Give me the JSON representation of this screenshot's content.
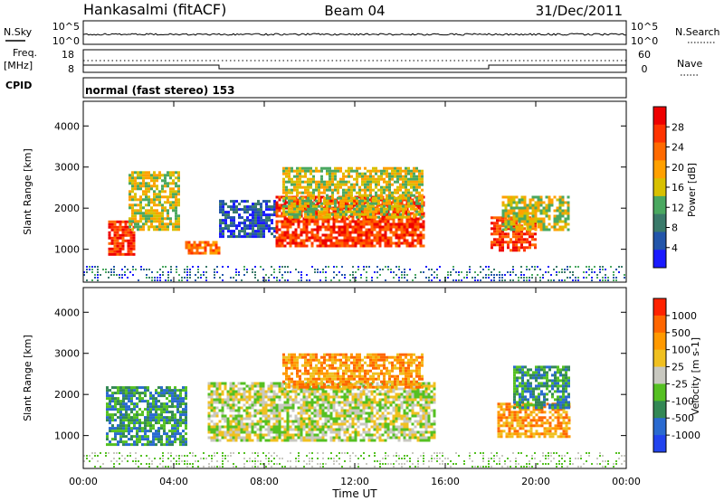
{
  "header": {
    "station": "Hankasalmi (fitACF)",
    "beam": "Beam 04",
    "date": "31/Dec/2011"
  },
  "strips": {
    "nsky_label": "N.Sky",
    "nsearch_label": "N.Search",
    "nsky_ticks": [
      "10^5",
      "10^0"
    ],
    "nsearch_ticks": [
      "10^5",
      "10^0"
    ],
    "freq_label": "Freq.",
    "freq_unit": "[MHz]",
    "freq_ticks": [
      "18",
      "8"
    ],
    "nave_label": "Nave",
    "nave_ticks": [
      "60",
      "0"
    ],
    "cpid_label": "CPID",
    "cpid_text": "normal (fast stereo) 153"
  },
  "colors": {
    "power_scale": [
      "#1a1aff",
      "#2255aa",
      "#3a7a6a",
      "#4aa860",
      "#d8c000",
      "#ffa000",
      "#ff6a00",
      "#ff3300",
      "#ee0000"
    ],
    "velocity_scale": [
      "#2244ee",
      "#2a6ad0",
      "#338855",
      "#55c022",
      "#c8c8c0",
      "#f0c020",
      "#ff9900",
      "#ff6600",
      "#ff2200"
    ],
    "groundscatter": "#c8c8c0"
  },
  "chart_data": [
    {
      "type": "heatmap",
      "panel": "power",
      "ylabel": "Slant Range [km]",
      "y_ticks": [
        1000,
        2000,
        3000,
        4000
      ],
      "ylim": [
        200,
        4600
      ],
      "x_ticks": [
        "00:00",
        "04:00",
        "08:00",
        "12:00",
        "16:00",
        "20:00",
        "00:00"
      ],
      "xlim_hours": [
        0,
        24
      ],
      "colorbar_label": "Power [dB]",
      "colorbar_ticks": [
        "28",
        "24",
        "20",
        "16",
        "12",
        "8",
        "4"
      ],
      "regions": [
        {
          "t": [
            1.1,
            2.3
          ],
          "r": [
            850,
            1700
          ],
          "level": 7
        },
        {
          "t": [
            2.0,
            4.2
          ],
          "r": [
            1500,
            2900
          ],
          "level": 4
        },
        {
          "t": [
            4.5,
            6.0
          ],
          "r": [
            900,
            1200
          ],
          "level": 6
        },
        {
          "t": [
            6.0,
            8.5
          ],
          "r": [
            1300,
            2200
          ],
          "level": 1
        },
        {
          "t": [
            8.5,
            15.0
          ],
          "r": [
            1100,
            2300
          ],
          "level": 7
        },
        {
          "t": [
            8.8,
            15.0
          ],
          "r": [
            1800,
            3000
          ],
          "level": 4
        },
        {
          "t": [
            18.0,
            20.0
          ],
          "r": [
            1000,
            1800
          ],
          "level": 7
        },
        {
          "t": [
            18.5,
            21.5
          ],
          "r": [
            1500,
            2300
          ],
          "level": 4
        }
      ]
    },
    {
      "type": "heatmap",
      "panel": "velocity",
      "ylabel": "Slant Range [km]",
      "y_ticks": [
        1000,
        2000,
        3000,
        4000
      ],
      "ylim": [
        200,
        4600
      ],
      "x_ticks": [
        "00:00",
        "04:00",
        "08:00",
        "12:00",
        "16:00",
        "20:00",
        "00:00"
      ],
      "xlim_hours": [
        0,
        24
      ],
      "xlabel": "Time UT",
      "colorbar_label": "Velocity [m s-1]",
      "colorbar_ticks": [
        "1000",
        "500",
        "100",
        "25",
        "-25",
        "-100",
        "-500",
        "-1000"
      ],
      "regions": [
        {
          "t": [
            1.0,
            4.5
          ],
          "r": [
            800,
            2200
          ],
          "level": 2
        },
        {
          "t": [
            5.5,
            15.5
          ],
          "r": [
            900,
            2300
          ],
          "level": 4
        },
        {
          "t": [
            8.8,
            15.0
          ],
          "r": [
            2200,
            3000
          ],
          "level": 6
        },
        {
          "t": [
            18.3,
            21.5
          ],
          "r": [
            1000,
            1800
          ],
          "level": 6
        },
        {
          "t": [
            19.0,
            21.5
          ],
          "r": [
            1700,
            2700
          ],
          "level": 2
        }
      ]
    }
  ]
}
